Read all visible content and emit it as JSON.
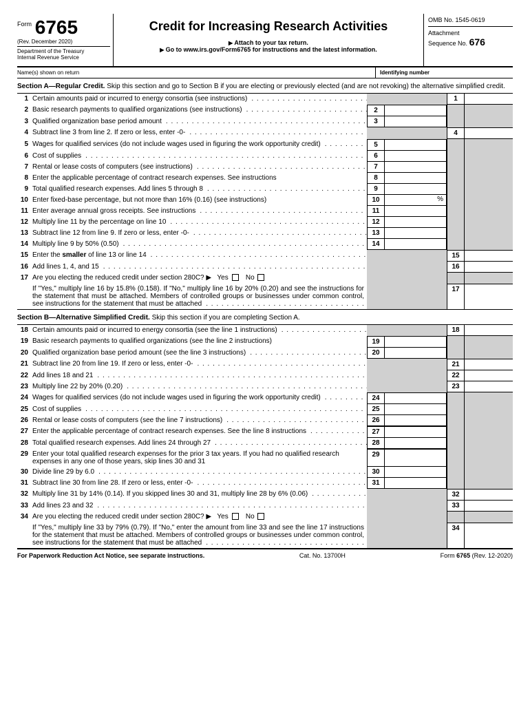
{
  "header": {
    "formWord": "Form",
    "formNum": "6765",
    "rev": "(Rev. December 2020)",
    "dept1": "Department of the Treasury",
    "dept2": "Internal Revenue Service",
    "title": "Credit for Increasing Research Activities",
    "sub1": "Attach to your tax return.",
    "sub2": "Go to www.irs.gov/Form6765 for instructions and the latest information.",
    "omb": "OMB No. 1545-0619",
    "attach": "Attachment",
    "seq": "Sequence No.",
    "seqNum": "676",
    "name": "Name(s) shown on return",
    "id": "Identifying number"
  },
  "sectionA": {
    "title": "Section A—Regular Credit.",
    "text": " Skip this section and go to Section B if you are electing or previously elected (and are not revoking) the alternative simplified credit."
  },
  "sectionB": {
    "title": "Section B—Alternative Simplified Credit.",
    "text": " Skip this section if you are completing Section A."
  },
  "lines": {
    "1": "Certain amounts paid or incurred to energy consortia (see instructions)",
    "2": "Basic research payments to qualified organizations (see instructions)",
    "3": "Qualified organization base period amount",
    "4": "Subtract line 3 from line 2. If zero or less, enter -0-",
    "5": "Wages for qualified services (do not include wages used in figuring the work opportunity credit)",
    "6": "Cost of supplies",
    "7": "Rental or lease costs of computers (see instructions)",
    "8": "Enter the applicable percentage of contract research expenses. See instructions",
    "9": "Total qualified research expenses. Add lines 5 through 8",
    "10": "Enter fixed-base percentage, but not more than 16% (0.16) (see instructions)",
    "10pct": "%",
    "11": "Enter average annual gross receipts. See instructions",
    "12": "Multiply line 11 by the percentage on line 10",
    "13": "Subtract line 12 from line 9. If zero or less, enter -0-",
    "14": "Multiply line 9 by 50% (0.50)",
    "15": "Enter the smaller of line 13 or line 14",
    "16": "Add lines 1, 4, and 15",
    "17a": "Are you electing the reduced credit under section 280C? ▶",
    "17yes": "Yes",
    "17no": "No",
    "17b": "If \"Yes,\" multiply line 16 by 15.8% (0.158). If \"No,\" multiply line 16 by 20% (0.20) and see the instructions for the statement that must be attached. Members of controlled groups or businesses under common control, see instructions for the statement that must be attached",
    "18": "Certain amounts paid or incurred to energy consortia (see the line 1 instructions)",
    "19": "Basic research payments to qualified organizations (see the line 2 instructions)",
    "20": "Qualified organization base period amount (see the line 3 instructions)",
    "21": "Subtract line 20 from line 19. If zero or less, enter -0-",
    "22": "Add lines 18 and 21",
    "23": "Multiply line 22 by 20% (0.20)",
    "24": "Wages for qualified services (do not include wages used in figuring the work opportunity credit)",
    "25": "Cost of supplies",
    "26": "Rental or lease costs of computers (see the line 7 instructions)",
    "27": "Enter the applicable percentage of contract research expenses. See the line 8 instructions",
    "28": "Total qualified research expenses. Add lines 24 through 27",
    "29": "Enter your total qualified research expenses for the prior 3 tax years. If you had no qualified research expenses in any one of those years, skip lines 30 and 31",
    "30": "Divide line 29 by 6.0",
    "31": "Subtract line 30 from line 28. If zero or less, enter -0-",
    "32": "Multiply line 31 by 14% (0.14). If you skipped lines 30 and 31, multiply line 28 by 6% (0.06)",
    "33": "Add lines 23 and 32",
    "34a": "Are you electing the reduced credit under section 280C? ▶",
    "34b": "If \"Yes,\" multiply line 33 by 79% (0.79). If \"No,\" enter the amount from line 33 and see the line 17 instructions for the statement that must be attached. Members of controlled groups or businesses under common control, see instructions for the statement that must be attached"
  },
  "footer": {
    "left": "For Paperwork Reduction Act Notice, see separate instructions.",
    "mid": "Cat. No. 13700H",
    "right": "Form 6765 (Rev. 12-2020)"
  }
}
